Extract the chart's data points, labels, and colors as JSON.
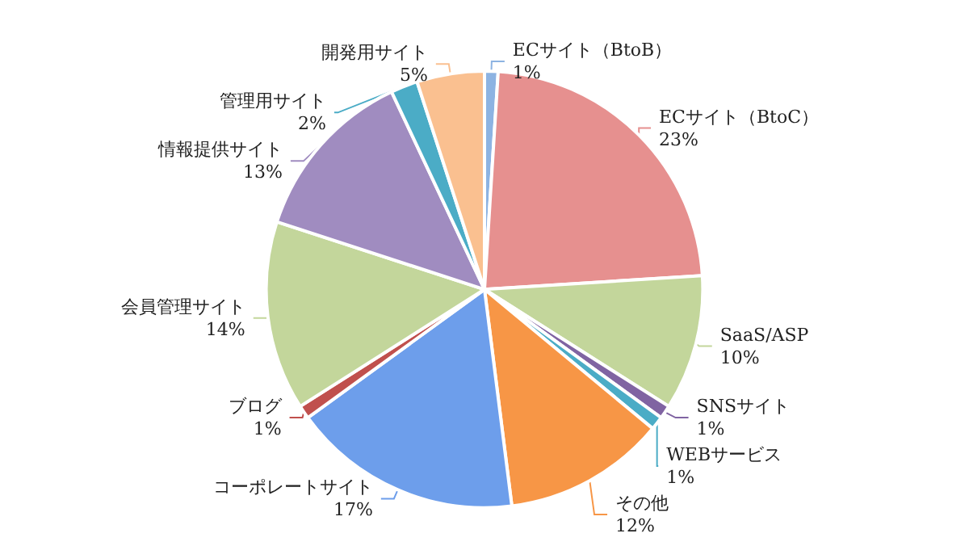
{
  "chart_data": {
    "type": "pie",
    "categories": [
      "ECサイト（BtoB）",
      "ECサイト（BtoC）",
      "SaaS/ASP",
      "SNSサイト",
      "WEBサービス",
      "その他",
      "コーポレートサイト",
      "ブログ",
      "会員管理サイト",
      "情報提供サイト",
      "管理用サイト",
      "開発用サイト"
    ],
    "values": [
      1,
      23,
      10,
      1,
      1,
      12,
      17,
      1,
      14,
      13,
      2,
      5
    ],
    "value_labels": [
      "1%",
      "23%",
      "10%",
      "1%",
      "1%",
      "12%",
      "17%",
      "1%",
      "14%",
      "13%",
      "2%",
      "5%"
    ],
    "colors": [
      "#8db3e2",
      "#e6908f",
      "#c3d69b",
      "#8064a2",
      "#4bacc6",
      "#f79646",
      "#6d9eeb",
      "#c0504d",
      "#c3d69b",
      "#a08cc0",
      "#4bacc6",
      "#fac090"
    ],
    "legend": false
  }
}
